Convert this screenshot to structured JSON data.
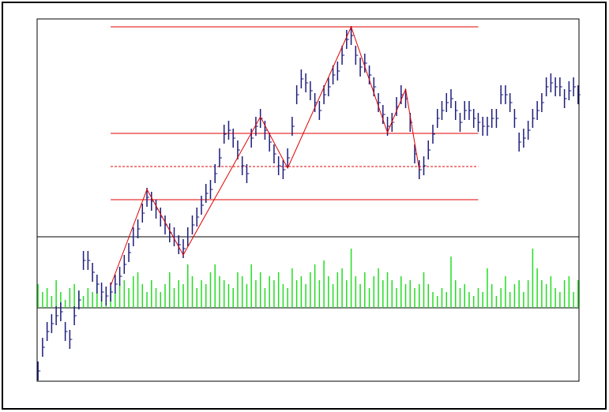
{
  "chart_data": {
    "type": "ohlc",
    "xlim": [
      -0.2,
      119.2
    ],
    "ylim": [
      0,
      459
    ],
    "vlim": [
      0,
      90
    ],
    "color": "#1c1c7c",
    "volume_color": "#22dd22",
    "line_color": "#e00000",
    "close": [
      13,
      43,
      63,
      73,
      83,
      88,
      63,
      53,
      83,
      103,
      153,
      153,
      138,
      123,
      113,
      108,
      113,
      123,
      133,
      148,
      163,
      183,
      193,
      213,
      233,
      228,
      218,
      208,
      198,
      188,
      183,
      173,
      168,
      183,
      198,
      208,
      223,
      238,
      243,
      263,
      283,
      313,
      318,
      308,
      293,
      273,
      263,
      308,
      323,
      333,
      318,
      303,
      288,
      273,
      268,
      283,
      323,
      363,
      383,
      378,
      368,
      353,
      343,
      363,
      373,
      388,
      393,
      413,
      433,
      438,
      413,
      398,
      403,
      388,
      373,
      353,
      338,
      323,
      328,
      348,
      363,
      358,
      328,
      288,
      268,
      273,
      293,
      313,
      333,
      343,
      353,
      358,
      343,
      328,
      343,
      343,
      333,
      328,
      323,
      323,
      333,
      333,
      363,
      363,
      353,
      333,
      303,
      308,
      318,
      333,
      343,
      353,
      373,
      378,
      373,
      373,
      358,
      368,
      373,
      363
    ],
    "high": [
      25,
      55,
      75,
      85,
      95,
      100,
      75,
      65,
      95,
      115,
      165,
      165,
      150,
      135,
      125,
      120,
      125,
      135,
      145,
      160,
      175,
      195,
      205,
      225,
      245,
      240,
      230,
      220,
      210,
      200,
      195,
      185,
      180,
      195,
      210,
      220,
      235,
      250,
      255,
      275,
      295,
      325,
      330,
      320,
      305,
      285,
      275,
      320,
      335,
      345,
      330,
      315,
      300,
      285,
      280,
      295,
      335,
      375,
      395,
      390,
      380,
      365,
      355,
      375,
      385,
      400,
      405,
      425,
      445,
      450,
      425,
      410,
      415,
      400,
      385,
      365,
      350,
      335,
      340,
      360,
      375,
      370,
      340,
      300,
      280,
      285,
      305,
      325,
      345,
      355,
      365,
      370,
      355,
      340,
      355,
      355,
      345,
      340,
      335,
      335,
      345,
      345,
      375,
      375,
      365,
      345,
      315,
      320,
      330,
      345,
      355,
      365,
      385,
      390,
      385,
      385,
      370,
      380,
      385,
      375
    ],
    "low": [
      1,
      31,
      51,
      61,
      71,
      76,
      51,
      41,
      71,
      91,
      141,
      141,
      126,
      111,
      101,
      96,
      101,
      111,
      121,
      136,
      151,
      171,
      181,
      201,
      221,
      216,
      206,
      196,
      186,
      176,
      171,
      161,
      156,
      171,
      186,
      196,
      211,
      226,
      231,
      251,
      271,
      301,
      306,
      296,
      281,
      261,
      251,
      296,
      311,
      321,
      306,
      291,
      276,
      261,
      256,
      271,
      311,
      351,
      371,
      366,
      356,
      341,
      331,
      351,
      361,
      376,
      381,
      401,
      421,
      426,
      401,
      386,
      391,
      376,
      361,
      341,
      326,
      311,
      316,
      336,
      351,
      346,
      316,
      276,
      256,
      261,
      281,
      301,
      321,
      331,
      341,
      346,
      331,
      316,
      331,
      331,
      321,
      316,
      311,
      311,
      321,
      321,
      351,
      351,
      341,
      321,
      291,
      296,
      306,
      321,
      331,
      341,
      361,
      366,
      361,
      361,
      346,
      356,
      361,
      351
    ],
    "volume": [
      30,
      20,
      25,
      15,
      35,
      20,
      10,
      25,
      30,
      20,
      15,
      25,
      20,
      30,
      15,
      10,
      25,
      20,
      30,
      35,
      25,
      40,
      45,
      30,
      20,
      35,
      25,
      20,
      30,
      45,
      25,
      35,
      30,
      55,
      40,
      25,
      35,
      30,
      45,
      55,
      40,
      35,
      30,
      25,
      45,
      40,
      30,
      55,
      35,
      45,
      25,
      40,
      35,
      45,
      30,
      25,
      50,
      35,
      40,
      30,
      45,
      55,
      35,
      60,
      40,
      30,
      45,
      50,
      35,
      75,
      40,
      30,
      45,
      25,
      40,
      50,
      35,
      45,
      35,
      25,
      40,
      30,
      35,
      25,
      30,
      45,
      30,
      20,
      15,
      25,
      20,
      65,
      35,
      25,
      30,
      20,
      15,
      25,
      20,
      50,
      30,
      15,
      25,
      40,
      20,
      30,
      35,
      20,
      35,
      75,
      50,
      35,
      30,
      40,
      25,
      20,
      35,
      40,
      20,
      35
    ],
    "zigzag": {
      "x": [
        16,
        24,
        32,
        49,
        55,
        69,
        77,
        81,
        84
      ],
      "values": [
        121,
        243,
        160,
        335,
        270,
        449,
        315,
        370,
        268
      ]
    },
    "fib_levels": [
      449,
      314,
      272,
      230
    ],
    "fib_dashed": [
      false,
      false,
      true,
      false
    ],
    "fib_x": [
      16,
      97
    ]
  }
}
